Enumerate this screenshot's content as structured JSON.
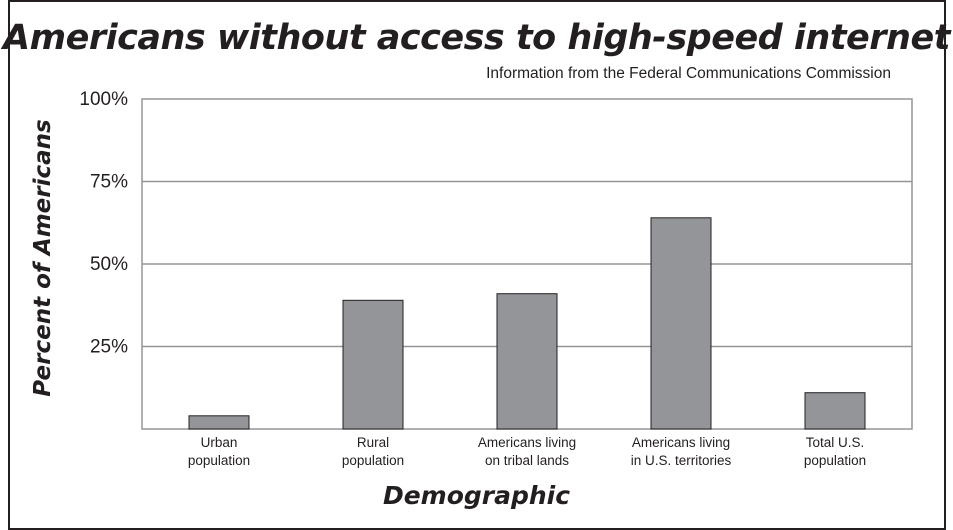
{
  "chart_data": {
    "type": "bar",
    "title": "Americans without access to high-speed internet",
    "subtitle": "Information from the Federal Communications Commission",
    "xlabel": "Demographic",
    "ylabel": "Percent of Americans",
    "categories": [
      [
        "Urban",
        "population"
      ],
      [
        "Rural",
        "population"
      ],
      [
        "Americans living",
        "on tribal lands"
      ],
      [
        "Americans living",
        "in U.S. territories"
      ],
      [
        "Total  U.S.",
        "population"
      ]
    ],
    "values": [
      4,
      39,
      41,
      64,
      11
    ],
    "ylim": [
      0,
      100
    ],
    "yticks": [
      25,
      50,
      75,
      100
    ],
    "yticklabels": [
      "25%",
      "50%",
      "75%",
      "100%"
    ],
    "grid": true,
    "colors": {
      "bar": "#939598",
      "bar_stroke": "#231f20",
      "grid": "#939598",
      "text": "#231f20"
    }
  }
}
